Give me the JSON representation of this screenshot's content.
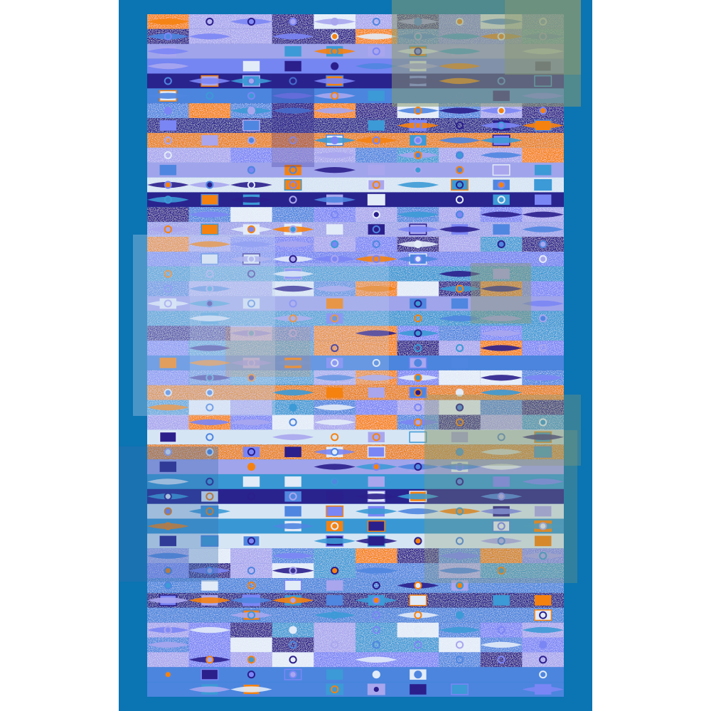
{
  "artwork": {
    "background": "#ffffff",
    "panel_color": "#0b74b3",
    "palette": {
      "orange": "#f5820f",
      "navy": "#2b1f8c",
      "periwinkle": "#7b86f5",
      "pale": "#e2ebf8",
      "mid_blue": "#4f86e0",
      "sky": "#3c9ad6",
      "lavender": "#a9a6ee",
      "teal_overlay": "#8a9a70"
    }
  }
}
